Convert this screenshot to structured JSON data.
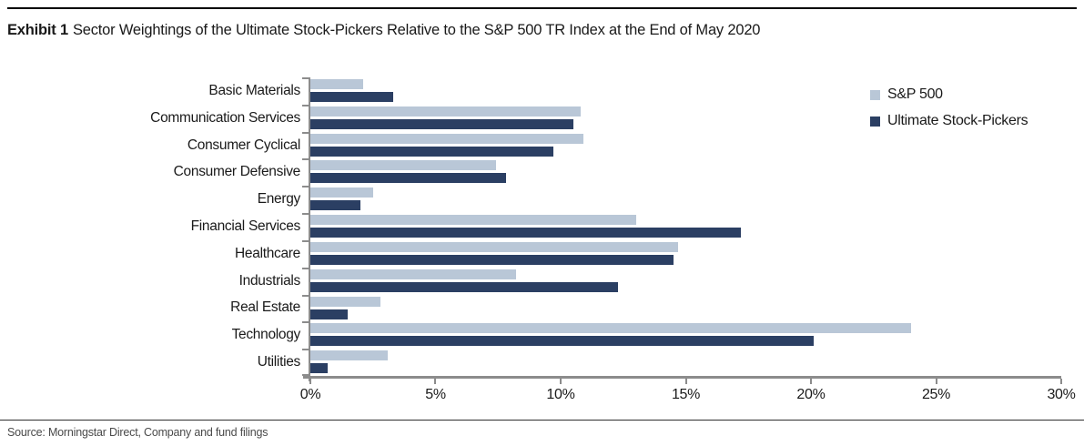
{
  "header": {
    "exhibit_label": "Exhibit 1",
    "title": "Sector Weightings of the Ultimate Stock-Pickers Relative to the S&P 500 TR Index at the End of May 2020"
  },
  "legend": [
    {
      "label": "S&P 500",
      "color": "#b9c7d7"
    },
    {
      "label": "Ultimate Stock-Pickers",
      "color": "#2b3f63"
    }
  ],
  "chart_data": {
    "type": "bar",
    "orientation": "horizontal",
    "title": "Sector Weightings of the Ultimate Stock-Pickers Relative to the S&P 500 TR Index at the End of May 2020",
    "categories": [
      "Basic Materials",
      "Communication Services",
      "Consumer Cyclical",
      "Consumer Defensive",
      "Energy",
      "Financial Services",
      "Healthcare",
      "Industrials",
      "Real Estate",
      "Technology",
      "Utilities"
    ],
    "series": [
      {
        "name": "S&P 500",
        "color": "#b9c7d7",
        "values": [
          2.1,
          10.8,
          10.9,
          7.4,
          2.5,
          13.0,
          14.7,
          8.2,
          2.8,
          24.0,
          3.1
        ]
      },
      {
        "name": "Ultimate Stock-Pickers",
        "color": "#2b3f63",
        "values": [
          3.3,
          10.5,
          9.7,
          7.8,
          2.0,
          17.2,
          14.5,
          12.3,
          1.5,
          20.1,
          0.7
        ]
      }
    ],
    "xlim": [
      0,
      30
    ],
    "x_ticks": [
      "0%",
      "5%",
      "10%",
      "15%",
      "20%",
      "25%",
      "30%"
    ],
    "x_tick_values": [
      0,
      5,
      10,
      15,
      20,
      25,
      30
    ],
    "grid": false,
    "legend_position": "top-right",
    "value_unit": "%"
  },
  "footer": {
    "source": "Source: Morningstar Direct, Company and fund filings"
  },
  "colors": {
    "sp500": "#b9c7d7",
    "ultimate_stock_pickers": "#2b3f63",
    "axis": "#8c8c8c",
    "text": "#1a1a1a",
    "source_text": "#4a4a4a"
  }
}
